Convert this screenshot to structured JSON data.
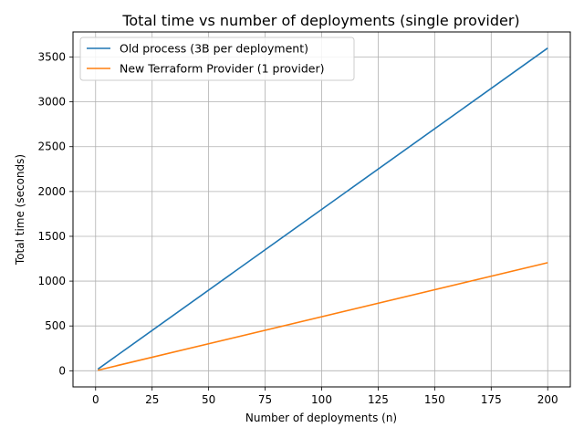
{
  "chart_data": {
    "type": "line",
    "title": "Total time vs number of deployments (single provider)",
    "xlabel": "Number of deployments (n)",
    "ylabel": "Total time (seconds)",
    "xlim": [
      -10,
      210
    ],
    "ylim": [
      -180,
      3780
    ],
    "xticks": [
      0,
      25,
      50,
      75,
      100,
      125,
      150,
      175,
      200
    ],
    "yticks": [
      0,
      500,
      1000,
      1500,
      2000,
      2500,
      3000,
      3500
    ],
    "grid": true,
    "legend_position": "top-left",
    "series": [
      {
        "name": "Old process (3B per deployment)",
        "color": "#1f77b4",
        "x": [
          1,
          200
        ],
        "y": [
          18,
          3600
        ]
      },
      {
        "name": "New Terraform Provider (1 provider)",
        "color": "#ff7f0e",
        "x": [
          1,
          200
        ],
        "y": [
          6,
          1206
        ]
      }
    ]
  }
}
